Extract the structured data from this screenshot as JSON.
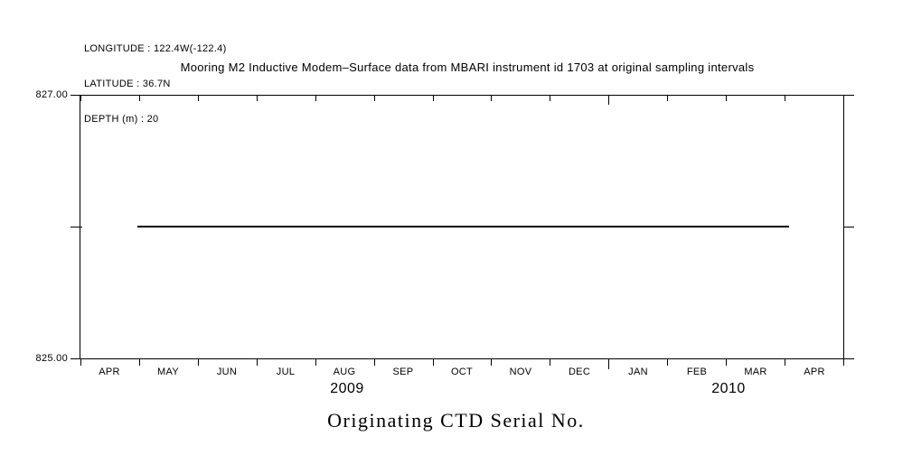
{
  "header": {
    "longitude": "LONGITUDE : 122.4W(-122.4)",
    "latitude": "LATITUDE : 36.7N",
    "depth": "DEPTH (m) : 20"
  },
  "chart_data": {
    "type": "line",
    "title": "Mooring M2 Inductive Modem–Surface data from MBARI instrument id 1703 at original sampling intervals",
    "axis_title_bottom": "Originating CTD Serial No.",
    "x_axis": {
      "tick_labels": [
        "APR",
        "MAY",
        "JUN",
        "JUL",
        "AUG",
        "SEP",
        "OCT",
        "NOV",
        "DEC",
        "JAN",
        "FEB",
        "MAR",
        "APR"
      ],
      "year_labels": [
        {
          "label": "2009",
          "position_months": 4.55
        },
        {
          "label": "2010",
          "position_months": 11.04
        }
      ],
      "long_tick_index": 9
    },
    "y_axis": {
      "min": 825.0,
      "max": 827.0,
      "ticks": [
        {
          "value": 827.0,
          "label": "827.00"
        },
        {
          "value": 826.0,
          "label": ""
        },
        {
          "value": 825.0,
          "label": "825.00"
        }
      ]
    },
    "series": [
      {
        "name": "originating-ctd-serial-no",
        "value": 826.0,
        "x_start_months": 0.97,
        "x_end_months": 12.08
      }
    ],
    "grid": false,
    "legend": "none",
    "line_color": "#000000",
    "background": "#ffffff"
  }
}
